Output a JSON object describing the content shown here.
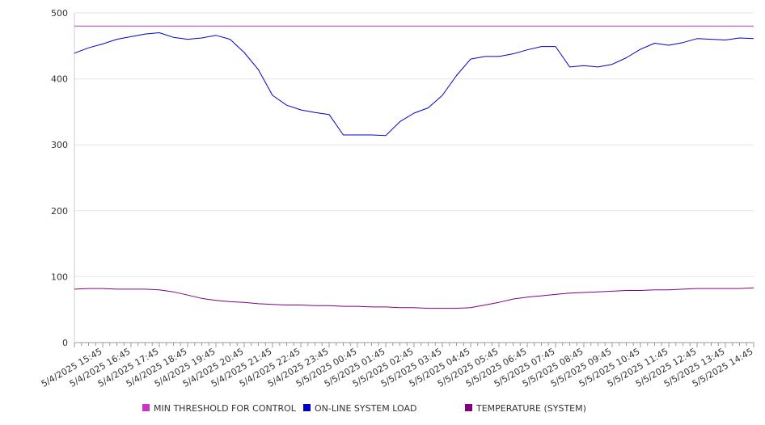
{
  "chart_data": {
    "type": "line",
    "title": "",
    "xlabel": "",
    "ylabel": "",
    "ylim": [
      0,
      500
    ],
    "yticks": [
      0,
      100,
      200,
      300,
      400,
      500
    ],
    "grid": "horizontal",
    "legend_position": "bottom",
    "xtick_labels": [
      "5/4/2025 15:45",
      "5/4/2025 16:45",
      "5/4/2025 17:45",
      "5/4/2025 18:45",
      "5/4/2025 19:45",
      "5/4/2025 20:45",
      "5/4/2025 21:45",
      "5/4/2025 22:45",
      "5/4/2025 23:45",
      "5/5/2025 00:45",
      "5/5/2025 01:45",
      "5/5/2025 02:45",
      "5/5/2025 03:45",
      "5/5/2025 04:45",
      "5/5/2025 05:45",
      "5/5/2025 06:45",
      "5/5/2025 07:45",
      "5/5/2025 08:45",
      "5/5/2025 09:45",
      "5/5/2025 10:45",
      "5/5/2025 11:45",
      "5/5/2025 12:45",
      "5/5/2025 13:45",
      "5/5/2025 14:45"
    ],
    "x_hours": [
      0,
      0.5,
      1,
      1.5,
      2,
      2.5,
      3,
      3.5,
      4,
      4.5,
      5,
      5.5,
      6,
      6.5,
      7,
      7.5,
      8,
      8.5,
      9,
      9.5,
      10,
      10.5,
      11,
      11.5,
      12,
      12.5,
      13,
      13.5,
      14,
      14.5,
      15,
      15.5,
      16,
      16.5,
      17,
      17.5,
      18,
      18.5,
      19,
      19.5,
      20,
      20.5,
      21,
      21.5,
      22,
      22.5,
      23,
      23.5,
      24
    ],
    "series": [
      {
        "name": "MIN THRESHOLD FOR CONTROL",
        "color": "#cc33cc",
        "values": [
          480,
          480,
          480,
          480,
          480,
          480,
          480,
          480,
          480,
          480,
          480,
          480,
          480,
          480,
          480,
          480,
          480,
          480,
          480,
          480,
          480,
          480,
          480,
          480,
          480,
          480,
          480,
          480,
          480,
          480,
          480,
          480,
          480,
          480,
          480,
          480,
          480,
          480,
          480,
          480,
          480,
          480,
          480,
          480,
          480,
          480,
          480,
          480,
          480
        ]
      },
      {
        "name": "ON-LINE SYSTEM LOAD",
        "color": "#0000cc",
        "values": [
          439,
          447,
          453,
          460,
          464,
          468,
          470,
          463,
          460,
          462,
          466,
          460,
          440,
          414,
          375,
          360,
          353,
          349,
          346,
          315,
          315,
          315,
          314,
          335,
          348,
          356,
          375,
          405,
          430,
          434,
          434,
          438,
          444,
          449,
          449,
          418,
          420,
          418,
          422,
          432,
          445,
          454,
          451,
          455,
          461,
          460,
          459,
          462,
          461
        ]
      },
      {
        "name": "TEMPERATURE (SYSTEM)",
        "color": "#800080",
        "values": [
          81,
          82,
          82,
          81,
          81,
          81,
          80,
          77,
          72,
          67,
          64,
          62,
          61,
          59,
          58,
          57,
          57,
          56,
          56,
          55,
          55,
          54,
          54,
          53,
          53,
          52,
          52,
          52,
          53,
          57,
          61,
          66,
          69,
          71,
          73,
          75,
          76,
          77,
          78,
          79,
          79,
          80,
          80,
          81,
          82,
          82,
          82,
          82,
          83
        ]
      }
    ]
  }
}
